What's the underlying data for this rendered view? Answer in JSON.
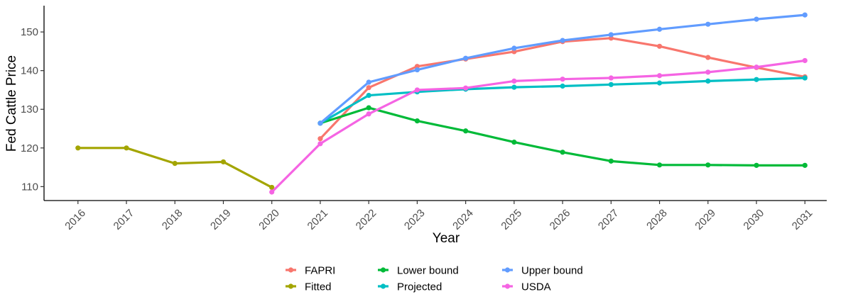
{
  "chart_data": {
    "type": "line",
    "xlabel": "Year",
    "ylabel": "Fed Cattle Price",
    "x_ticks": [
      "2016",
      "2017",
      "2018",
      "2019",
      "2020",
      "2021",
      "2022",
      "2023",
      "2024",
      "2025",
      "2026",
      "2027",
      "2028",
      "2029",
      "2030",
      "2031"
    ],
    "y_ticks": [
      "110",
      "120",
      "130",
      "140",
      "150"
    ],
    "xlim": [
      2015.3,
      2031.45
    ],
    "ylim": [
      106.4,
      156.8
    ],
    "grid": false,
    "legend_position": "bottom",
    "series": [
      {
        "name": "FAPRI",
        "color": "#F8766D",
        "x": [
          2021,
          2022,
          2023,
          2024,
          2025,
          2026,
          2027,
          2028,
          2029,
          2030,
          2031
        ],
        "y": [
          122.4,
          135.6,
          141.1,
          143.0,
          144.9,
          147.5,
          148.4,
          146.3,
          143.4,
          140.8,
          138.4
        ]
      },
      {
        "name": "Fitted",
        "color": "#A3A500",
        "x": [
          2016,
          2017,
          2018,
          2019,
          2020
        ],
        "y": [
          120.0,
          120.0,
          116.0,
          116.4,
          109.8
        ]
      },
      {
        "name": "Lower bound",
        "color": "#00BA38",
        "x": [
          2021,
          2022,
          2023,
          2024,
          2025,
          2026,
          2027,
          2028,
          2029,
          2030,
          2031
        ],
        "y": [
          126.4,
          130.4,
          127.0,
          124.4,
          121.5,
          118.9,
          116.6,
          115.6,
          115.6,
          115.5,
          115.5
        ]
      },
      {
        "name": "Projected",
        "color": "#00BFC4",
        "x": [
          2021,
          2022,
          2023,
          2024,
          2025,
          2026,
          2027,
          2028,
          2029,
          2030,
          2031
        ],
        "y": [
          126.4,
          133.6,
          134.5,
          135.2,
          135.7,
          136.0,
          136.4,
          136.8,
          137.3,
          137.7,
          138.1
        ]
      },
      {
        "name": "Upper bound",
        "color": "#619CFF",
        "x": [
          2021,
          2022,
          2023,
          2024,
          2025,
          2026,
          2027,
          2028,
          2029,
          2030,
          2031
        ],
        "y": [
          126.4,
          137.0,
          140.2,
          143.2,
          145.8,
          147.8,
          149.3,
          150.7,
          152.0,
          153.3,
          154.4
        ]
      },
      {
        "name": "USDA",
        "color": "#F564E3",
        "x": [
          2020,
          2021,
          2022,
          2023,
          2024,
          2025,
          2026,
          2027,
          2028,
          2029,
          2030,
          2031
        ],
        "y": [
          108.6,
          121.1,
          128.8,
          135.0,
          135.5,
          137.3,
          137.8,
          138.1,
          138.7,
          139.6,
          140.9,
          142.6
        ]
      }
    ]
  }
}
